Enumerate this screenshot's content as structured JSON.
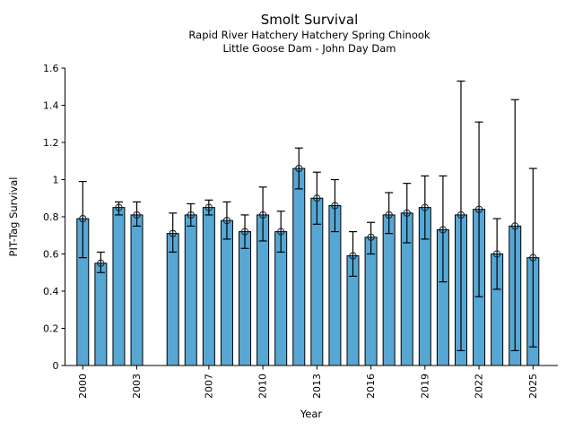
{
  "chart_data": {
    "type": "bar",
    "title": "Smolt Survival",
    "subtitle_line1": "Rapid River Hatchery Hatchery Spring Chinook",
    "subtitle_line2": "Little Goose Dam - John Day Dam",
    "xlabel": "Year",
    "ylabel": "PIT-Tag Survival",
    "ylim": [
      0,
      1.6
    ],
    "yticks": [
      0,
      0.2,
      0.4,
      0.6,
      0.8,
      1,
      1.2,
      1.4,
      1.6
    ],
    "ytick_labels": [
      "0",
      "0.2",
      "0.4",
      "0.6",
      "0.8",
      "1",
      "1.2",
      "1.4",
      "1.6"
    ],
    "xticks": [
      2000,
      2003,
      2007,
      2010,
      2013,
      2016,
      2019,
      2022,
      2025
    ],
    "grid": false,
    "legend_position": "none",
    "bar_color": "#57A7D4",
    "bar_edge_color": "#000000",
    "error_color": "#000000",
    "marker": "open-circle",
    "series": [
      {
        "name": "PIT-Tag Survival",
        "points": [
          {
            "year": 2000,
            "value": 0.79,
            "lo": 0.58,
            "hi": 0.99
          },
          {
            "year": 2001,
            "value": 0.55,
            "lo": 0.5,
            "hi": 0.61
          },
          {
            "year": 2002,
            "value": 0.85,
            "lo": 0.81,
            "hi": 0.88
          },
          {
            "year": 2003,
            "value": 0.81,
            "lo": 0.75,
            "hi": 0.88
          },
          {
            "year": 2005,
            "value": 0.71,
            "lo": 0.61,
            "hi": 0.82
          },
          {
            "year": 2006,
            "value": 0.81,
            "lo": 0.75,
            "hi": 0.87
          },
          {
            "year": 2007,
            "value": 0.85,
            "lo": 0.81,
            "hi": 0.89
          },
          {
            "year": 2008,
            "value": 0.78,
            "lo": 0.68,
            "hi": 0.88
          },
          {
            "year": 2009,
            "value": 0.72,
            "lo": 0.63,
            "hi": 0.81
          },
          {
            "year": 2010,
            "value": 0.81,
            "lo": 0.67,
            "hi": 0.96
          },
          {
            "year": 2011,
            "value": 0.72,
            "lo": 0.61,
            "hi": 0.83
          },
          {
            "year": 2012,
            "value": 1.06,
            "lo": 0.95,
            "hi": 1.17
          },
          {
            "year": 2013,
            "value": 0.9,
            "lo": 0.76,
            "hi": 1.04
          },
          {
            "year": 2014,
            "value": 0.86,
            "lo": 0.72,
            "hi": 1.0
          },
          {
            "year": 2015,
            "value": 0.59,
            "lo": 0.48,
            "hi": 0.72
          },
          {
            "year": 2016,
            "value": 0.69,
            "lo": 0.6,
            "hi": 0.77
          },
          {
            "year": 2017,
            "value": 0.81,
            "lo": 0.71,
            "hi": 0.93
          },
          {
            "year": 2018,
            "value": 0.82,
            "lo": 0.66,
            "hi": 0.98
          },
          {
            "year": 2019,
            "value": 0.85,
            "lo": 0.68,
            "hi": 1.02
          },
          {
            "year": 2020,
            "value": 0.73,
            "lo": 0.45,
            "hi": 1.02
          },
          {
            "year": 2021,
            "value": 0.81,
            "lo": 0.08,
            "hi": 1.53
          },
          {
            "year": 2022,
            "value": 0.84,
            "lo": 0.37,
            "hi": 1.31
          },
          {
            "year": 2023,
            "value": 0.6,
            "lo": 0.41,
            "hi": 0.79
          },
          {
            "year": 2024,
            "value": 0.75,
            "lo": 0.08,
            "hi": 1.43
          },
          {
            "year": 2025,
            "value": 0.58,
            "lo": 0.1,
            "hi": 1.06
          }
        ]
      }
    ]
  }
}
